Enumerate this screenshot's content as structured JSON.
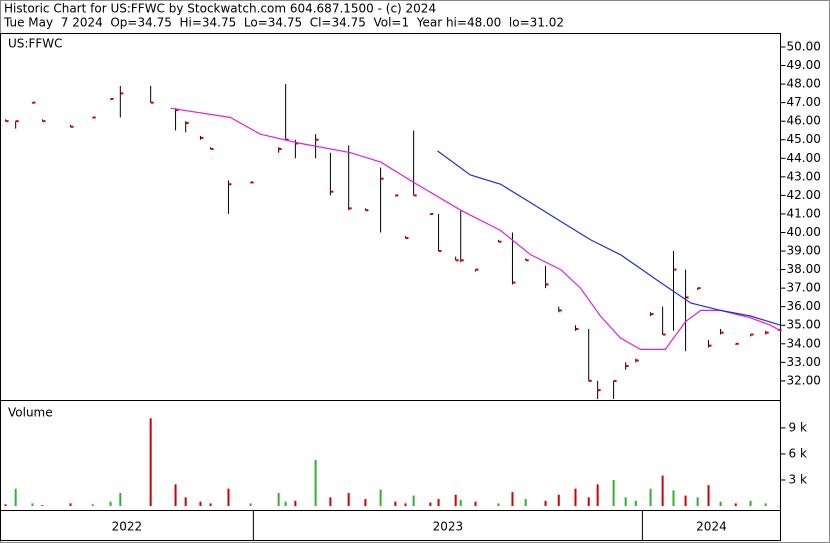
{
  "chart_data": {
    "type": "ohlc",
    "title": "Historic Chart for US:FFWC by Stockwatch.com 604.687.1500 - (c) 2024",
    "subtitle": "Tue May  7 2024  Op=34.75  Hi=34.75  Lo=34.75  Cl=34.75  Vol=1  Year hi=48.00  lo=31.02",
    "symbol_label": "US:FFWC",
    "range_color": "#000000",
    "close_color": "#d00000",
    "x": [
      2022.363,
      2022.389,
      2022.432,
      2022.458,
      2022.53,
      2022.587,
      2022.633,
      2022.658,
      2022.736,
      2022.8,
      2022.826,
      2022.864,
      2022.89,
      2022.936,
      2022.993,
      2023.065,
      2023.083,
      2023.108,
      2023.16,
      2023.198,
      2023.245,
      2023.288,
      2023.327,
      2023.365,
      2023.391,
      2023.412,
      2023.455,
      2023.476,
      2023.52,
      2023.533,
      2023.571,
      2023.63,
      2023.666,
      2023.7,
      2023.751,
      2023.785,
      2023.828,
      2023.862,
      2023.885,
      2023.926,
      2023.957,
      2023.983,
      2024.021,
      2024.052,
      2024.08,
      2024.111,
      2024.142,
      2024.17,
      2024.201,
      2024.24,
      2024.278,
      2024.317,
      2024.35
    ],
    "high": [
      46.1,
      46.0,
      47.0,
      46.1,
      45.8,
      46.2,
      47.2,
      47.9,
      47.9,
      46.7,
      46.0,
      45.2,
      44.6,
      42.8,
      42.7,
      44.6,
      48.0,
      45.0,
      45.3,
      44.3,
      44.7,
      41.3,
      43.5,
      42.0,
      39.8,
      45.5,
      41.0,
      41.0,
      38.7,
      41.2,
      38.0,
      39.6,
      40.0,
      38.6,
      38.2,
      36.0,
      35.0,
      34.8,
      32.0,
      32.0,
      33.0,
      33.2,
      35.7,
      36.0,
      39.0,
      38.0,
      37.0,
      34.2,
      34.8,
      34.0,
      34.5,
      34.7,
      34.75
    ],
    "low": [
      46.0,
      45.6,
      47.0,
      46.0,
      45.7,
      46.2,
      47.2,
      46.2,
      47.0,
      45.5,
      45.4,
      45.0,
      44.5,
      41.0,
      42.7,
      44.3,
      45.0,
      44.0,
      44.0,
      42.0,
      41.2,
      41.2,
      40.0,
      42.0,
      39.7,
      42.0,
      41.0,
      39.0,
      38.5,
      38.4,
      37.9,
      39.5,
      37.2,
      38.5,
      37.0,
      35.7,
      34.7,
      32.0,
      31.02,
      31.02,
      32.6,
      33.0,
      35.5,
      34.5,
      34.7,
      33.6,
      36.9,
      33.8,
      34.5,
      34.0,
      34.4,
      34.5,
      34.75
    ],
    "close": [
      46.0,
      46.0,
      47.0,
      46.0,
      45.7,
      46.2,
      47.2,
      47.5,
      47.0,
      46.6,
      45.9,
      45.1,
      44.5,
      42.6,
      42.7,
      44.5,
      45.0,
      44.8,
      45.0,
      42.2,
      41.3,
      41.2,
      42.9,
      42.0,
      39.7,
      42.0,
      41.0,
      39.0,
      38.5,
      38.5,
      38.0,
      39.5,
      37.3,
      38.5,
      37.2,
      35.8,
      34.8,
      32.0,
      31.5,
      32.0,
      32.8,
      33.1,
      35.6,
      34.5,
      38.0,
      36.5,
      37.0,
      33.9,
      34.6,
      34.0,
      34.5,
      34.6,
      34.75
    ],
    "lines": [
      {
        "color": "#e020e0",
        "x": [
          2022.787,
          2022.941,
          2023.018,
          2023.121,
          2023.25,
          2023.327,
          2023.404,
          2023.533,
          2023.636,
          2023.713,
          2023.79,
          2023.841,
          2023.892,
          2023.944,
          2023.995,
          2024.059,
          2024.111,
          2024.15,
          2024.201,
          2024.278,
          2024.329,
          2024.355
        ],
        "values": [
          46.7,
          46.2,
          45.3,
          44.8,
          44.3,
          43.8,
          42.8,
          41.2,
          40.1,
          38.8,
          38.0,
          37.0,
          35.5,
          34.3,
          33.7,
          33.7,
          35.2,
          35.8,
          35.8,
          35.4,
          35.0,
          34.7
        ]
      },
      {
        "color": "#2030d0",
        "x": [
          2023.473,
          2023.558,
          2023.636,
          2023.713,
          2023.79,
          2023.867,
          2023.944,
          2024.047,
          2024.124,
          2024.201,
          2024.278,
          2024.355
        ],
        "values": [
          44.4,
          43.1,
          42.6,
          41.6,
          40.6,
          39.6,
          38.8,
          37.3,
          36.2,
          35.8,
          35.5,
          35.0
        ]
      }
    ],
    "xlim": [
      2022.35,
      2024.355
    ],
    "xticks": [
      2023,
      2024
    ],
    "year_labels": [
      "2022",
      "2023",
      "2024"
    ],
    "ylim": [
      30.97,
      50.7
    ],
    "yticks": [
      {
        "value": 32,
        "label": "32.00"
      },
      {
        "value": 33,
        "label": "33.00"
      },
      {
        "value": 34,
        "label": "34.00"
      },
      {
        "value": 35,
        "label": "35.00"
      },
      {
        "value": 36,
        "label": "36.00"
      },
      {
        "value": 37,
        "label": "37.00"
      },
      {
        "value": 38,
        "label": "38.00"
      },
      {
        "value": 39,
        "label": "39.00"
      },
      {
        "value": 40,
        "label": "40.00"
      },
      {
        "value": 41,
        "label": "41.00"
      },
      {
        "value": 42,
        "label": "42.00"
      },
      {
        "value": 43,
        "label": "43.00"
      },
      {
        "value": 44,
        "label": "44.00"
      },
      {
        "value": 45,
        "label": "45.00"
      },
      {
        "value": 46,
        "label": "46.00"
      },
      {
        "value": 47,
        "label": "47.00"
      },
      {
        "value": 48,
        "label": "48.00"
      },
      {
        "value": 49,
        "label": "49.00"
      },
      {
        "value": 50,
        "label": "50.00"
      }
    ],
    "volume": {
      "label": "Volume",
      "up_color": "#30b030",
      "down_color": "#d00000",
      "values": [
        200,
        2000,
        300,
        100,
        300,
        200,
        500,
        1500,
        10100,
        2500,
        1000,
        500,
        300,
        2000,
        300,
        1500,
        500,
        600,
        5300,
        1000,
        1500,
        800,
        1900,
        500,
        300,
        1200,
        400,
        800,
        1300,
        700,
        500,
        300,
        1600,
        800,
        600,
        1300,
        2000,
        1000,
        2500,
        3000,
        1000,
        600,
        2000,
        3500,
        1800,
        1200,
        1000,
        2400,
        500,
        300,
        600,
        300,
        1
      ],
      "ylim": [
        0,
        12100
      ],
      "yticks": [
        {
          "value": 3000,
          "label": "3 k"
        },
        {
          "value": 6000,
          "label": "6 k"
        },
        {
          "value": 9000,
          "label": "9 k"
        }
      ]
    }
  }
}
